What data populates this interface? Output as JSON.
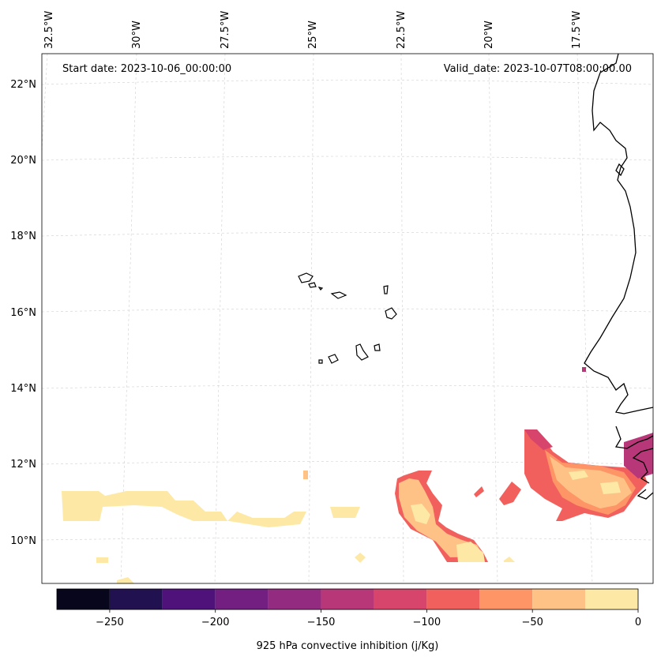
{
  "map": {
    "start_date": "Start date: 2023-10-06_00:00:00",
    "valid_date": "Valid_date: 2023-10-07T08:00:00.00",
    "lon_labels": [
      "32.5°W",
      "30°W",
      "27.5°W",
      "25°W",
      "22.5°W",
      "20°W",
      "17.5°W"
    ],
    "lat_labels": [
      "22°N",
      "20°N",
      "18°N",
      "16°N",
      "14°N",
      "12°N",
      "10°N"
    ],
    "gridlines": true,
    "background_color": "#ffffff",
    "coastline_color": "#000000"
  },
  "colorbar": {
    "label": "925 hPa convective inhibition (j/Kg)",
    "tick_labels": [
      "−250",
      "−200",
      "−150",
      "−100",
      "−50",
      "0"
    ],
    "levels": [
      -275,
      -250,
      -225,
      -200,
      -175,
      -150,
      -125,
      -100,
      -75,
      -50,
      -25,
      0
    ],
    "colors": [
      "#07061c",
      "#221150",
      "#4f127b",
      "#721f81",
      "#932b80",
      "#b73779",
      "#d8456c",
      "#f1605d",
      "#fd9567",
      "#fec287",
      "#fde9a5"
    ]
  }
}
